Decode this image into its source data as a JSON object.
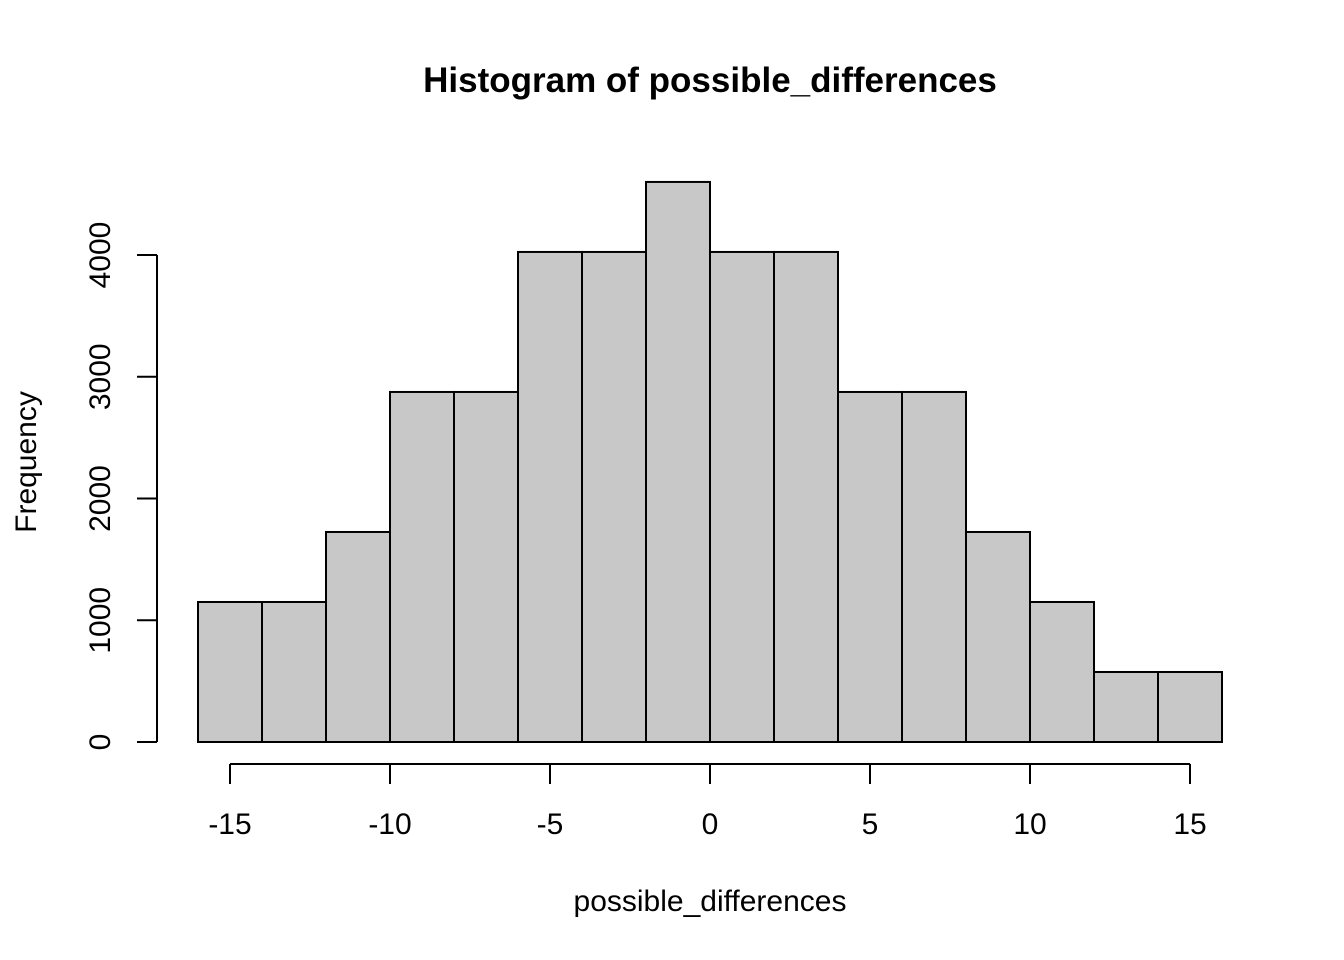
{
  "chart_data": {
    "type": "bar",
    "title": "Histogram of possible_differences",
    "xlabel": "possible_differences",
    "ylabel": "Frequency",
    "bar_color": "#c8c8c8",
    "edge_color": "#000000",
    "bins": [
      {
        "x0": -16,
        "x1": -14,
        "count": 1150
      },
      {
        "x0": -14,
        "x1": -12,
        "count": 1150
      },
      {
        "x0": -12,
        "x1": -10,
        "count": 1725
      },
      {
        "x0": -10,
        "x1": -8,
        "count": 2875
      },
      {
        "x0": -8,
        "x1": -6,
        "count": 2875
      },
      {
        "x0": -6,
        "x1": -4,
        "count": 4025
      },
      {
        "x0": -4,
        "x1": -2,
        "count": 4025
      },
      {
        "x0": -2,
        "x1": 0,
        "count": 4600
      },
      {
        "x0": 0,
        "x1": 2,
        "count": 4025
      },
      {
        "x0": 2,
        "x1": 4,
        "count": 4025
      },
      {
        "x0": 4,
        "x1": 6,
        "count": 2875
      },
      {
        "x0": 6,
        "x1": 8,
        "count": 2875
      },
      {
        "x0": 8,
        "x1": 10,
        "count": 1725
      },
      {
        "x0": 10,
        "x1": 12,
        "count": 1150
      },
      {
        "x0": 12,
        "x1": 14,
        "count": 575
      },
      {
        "x0": 14,
        "x1": 16,
        "count": 575
      }
    ],
    "xlim": [
      -16,
      16
    ],
    "ylim": [
      0,
      4600
    ],
    "x_ticks": [
      -15,
      -10,
      -5,
      0,
      5,
      10,
      15
    ],
    "x_tick_labels": [
      "-15",
      "-10",
      "-5",
      "0",
      "5",
      "10",
      "15"
    ],
    "y_ticks": [
      0,
      1000,
      2000,
      3000,
      4000
    ],
    "y_tick_labels": [
      "0",
      "1000",
      "2000",
      "3000",
      "4000"
    ],
    "grid": false,
    "legend": "none"
  }
}
